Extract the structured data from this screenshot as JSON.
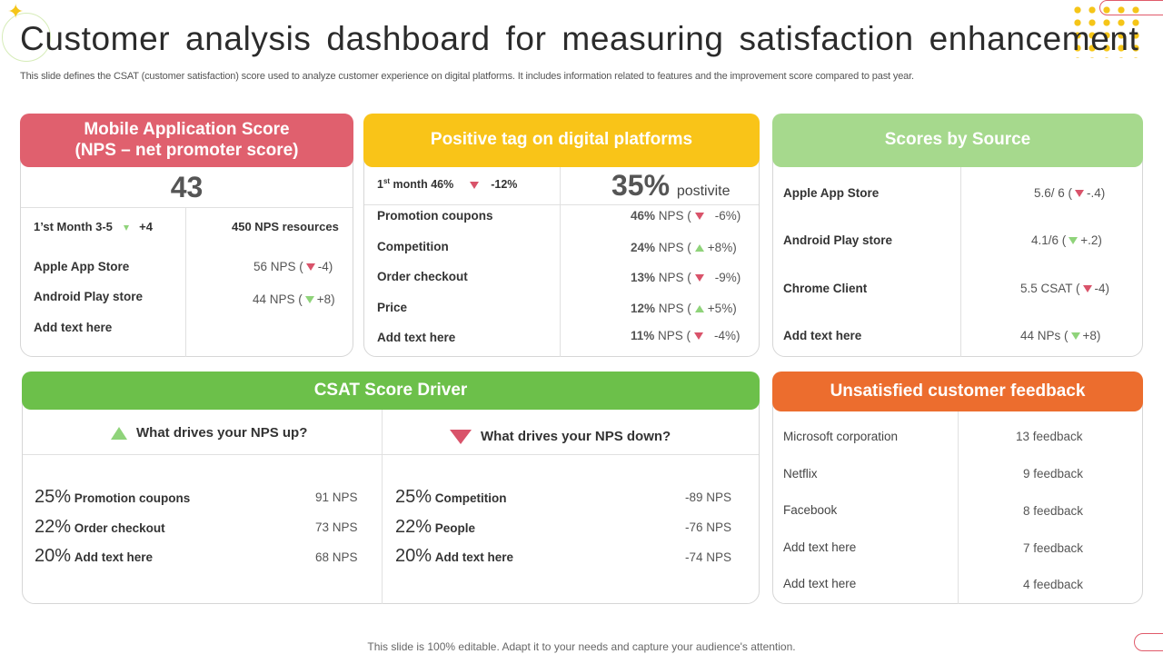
{
  "page": {
    "title": "Customer analysis dashboard for measuring satisfaction enhancement",
    "subtitle": "This slide defines the CSAT (customer satisfaction) score used to analyze customer experience on digital platforms. It includes information related to features and the improvement score compared to past year.",
    "footer": "This slide is 100% editable. Adapt it to your needs and capture your audience's attention."
  },
  "colors": {
    "pink": "#e0606e",
    "yellow": "#f9c418",
    "light_green": "#a6d98d",
    "green": "#6cc04a",
    "orange": "#ec6d2e",
    "up": "#8fd37a",
    "down": "#d9536a"
  },
  "mobile": {
    "header_line1": "Mobile Application Score",
    "header_line2": "(NPS – net promoter score)",
    "score": "43",
    "month_label": "1’st  Month 3-5",
    "month_change": "+4",
    "resources": "450 NPS resources",
    "rows": [
      {
        "label": "Apple App Store",
        "value": "56 NPS  (",
        "change": "-4)",
        "direction": "down"
      },
      {
        "label": "Android Play store",
        "value": "44 NPS (",
        "change": "+8)",
        "direction": "up"
      },
      {
        "label": "Add text here"
      }
    ]
  },
  "positive": {
    "header": "Positive tag on digital platforms",
    "month_label": "1",
    "month_sup": "st",
    "month_rest": " month 46%",
    "month_change": "-12%",
    "big_pct": "35%",
    "big_label": "postivite",
    "rows": [
      {
        "label": "Promotion coupons",
        "pct": "46%",
        "unit": " NPS (",
        "change": "-6%)",
        "direction": "down"
      },
      {
        "label": "Competition",
        "pct": "24%",
        "unit": " NPS (",
        "change": "+8%)",
        "direction": "up"
      },
      {
        "label": "Order checkout",
        "pct": "13%",
        "unit": " NPS (",
        "change": "-9%)",
        "direction": "down"
      },
      {
        "label": "Price",
        "pct": "12%",
        "unit": " NPS (",
        "change": "+5%)",
        "direction": "up"
      },
      {
        "label": "Add text here",
        "pct": "11%",
        "unit": " NPS (",
        "change": "-4%)",
        "direction": "down"
      }
    ]
  },
  "sources": {
    "header": "Scores by Source",
    "rows": [
      {
        "label": "Apple App Store",
        "value": "5.6/ 6  (",
        "change": "-.4)",
        "direction": "down"
      },
      {
        "label": "Android Play store",
        "value": "4.1/6   (",
        "change": "+.2)",
        "direction": "up"
      },
      {
        "label": "Chrome Client",
        "value": "5.5 CSAT (",
        "change": "-4)",
        "direction": "down"
      },
      {
        "label": "Add text here",
        "value": "44 NPs  (",
        "change": "+8)",
        "direction": "up"
      }
    ]
  },
  "csat": {
    "header": "CSAT Score Driver",
    "up_title": "What drives your NPS up?",
    "down_title": "What drives your NPS down?",
    "up_rows": [
      {
        "pct": "25%",
        "label": "Promotion  coupons",
        "value": "91 NPS"
      },
      {
        "pct": "22%",
        "label": "Order  checkout",
        "value": "73 NPS"
      },
      {
        "pct": "20%",
        "label": "Add  text  here",
        "value": "68 NPS"
      }
    ],
    "down_rows": [
      {
        "pct": "25%",
        "label": "Competition",
        "value": "-89 NPS"
      },
      {
        "pct": "22%",
        "label": "People",
        "value": "-76 NPS"
      },
      {
        "pct": "20%",
        "label": "Add  text  here",
        "value": "-74 NPS"
      }
    ]
  },
  "feedback": {
    "header": "Unsatisfied customer feedback",
    "rows": [
      {
        "label": "Microsoft corporation",
        "value": "13 feedback"
      },
      {
        "label": "Netflix",
        "value": "9 feedback"
      },
      {
        "label": "Facebook",
        "value": "8 feedback"
      },
      {
        "label": "Add text here",
        "value": "7 feedback"
      },
      {
        "label": "Add text here",
        "value": "4 feedback"
      }
    ]
  }
}
